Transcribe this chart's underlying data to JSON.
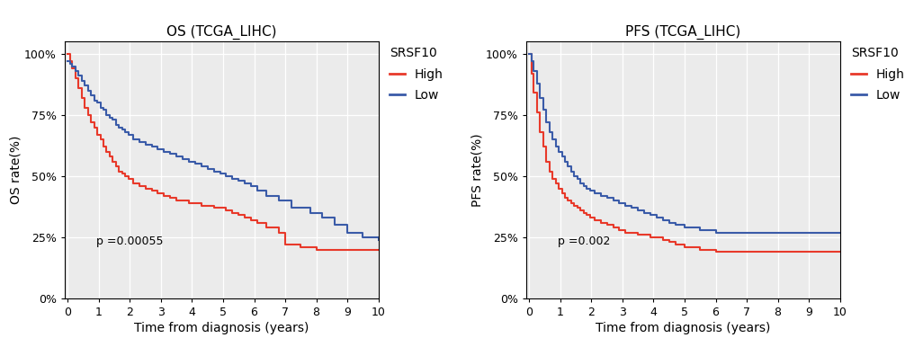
{
  "os_title": "OS (TCGA_LIHC)",
  "pfs_title": "PFS (TCGA_LIHC)",
  "xlabel": "Time from diagnosis (years)",
  "os_ylabel": "OS rate(%)",
  "pfs_ylabel": "PFS rate(%)",
  "legend_title": "SRSF10",
  "legend_high": "High",
  "legend_low": "Low",
  "os_pvalue": "p =0.00055",
  "pfs_pvalue": "p =0.002",
  "high_color": "#E8392A",
  "low_color": "#3A5BA8",
  "plot_bg_color": "#EBEBEB",
  "fig_bg_color": "#FFFFFF",
  "ylim": [
    0,
    1.05
  ],
  "xlim": [
    -0.1,
    10
  ],
  "xticks": [
    0,
    1,
    2,
    3,
    4,
    5,
    6,
    7,
    8,
    9,
    10
  ],
  "yticks": [
    0,
    0.25,
    0.5,
    0.75,
    1.0
  ],
  "ytick_labels": [
    "0%",
    "25%",
    "50%",
    "75%",
    "100%"
  ],
  "os_high_t": [
    0,
    0.08,
    0.15,
    0.25,
    0.35,
    0.45,
    0.55,
    0.65,
    0.75,
    0.85,
    0.95,
    1.05,
    1.15,
    1.25,
    1.35,
    1.45,
    1.55,
    1.65,
    1.75,
    1.85,
    1.95,
    2.1,
    2.3,
    2.5,
    2.7,
    2.9,
    3.1,
    3.3,
    3.5,
    3.7,
    3.9,
    4.1,
    4.3,
    4.5,
    4.7,
    4.9,
    5.1,
    5.3,
    5.5,
    5.7,
    5.9,
    6.1,
    6.4,
    6.8,
    7.0,
    7.5,
    8.0,
    8.5,
    9.0,
    10.0
  ],
  "os_high_s": [
    1.0,
    0.97,
    0.94,
    0.9,
    0.86,
    0.82,
    0.78,
    0.75,
    0.72,
    0.7,
    0.67,
    0.65,
    0.62,
    0.6,
    0.58,
    0.56,
    0.54,
    0.52,
    0.51,
    0.5,
    0.49,
    0.47,
    0.46,
    0.45,
    0.44,
    0.43,
    0.42,
    0.41,
    0.4,
    0.4,
    0.39,
    0.39,
    0.38,
    0.38,
    0.37,
    0.37,
    0.36,
    0.35,
    0.34,
    0.33,
    0.32,
    0.31,
    0.29,
    0.27,
    0.22,
    0.21,
    0.2,
    0.2,
    0.2,
    0.2
  ],
  "os_low_t": [
    0,
    0.08,
    0.15,
    0.25,
    0.35,
    0.45,
    0.55,
    0.65,
    0.75,
    0.85,
    0.95,
    1.05,
    1.15,
    1.25,
    1.35,
    1.45,
    1.55,
    1.65,
    1.75,
    1.85,
    1.95,
    2.1,
    2.3,
    2.5,
    2.7,
    2.9,
    3.1,
    3.3,
    3.5,
    3.7,
    3.9,
    4.1,
    4.3,
    4.5,
    4.7,
    4.9,
    5.1,
    5.3,
    5.5,
    5.7,
    5.9,
    6.1,
    6.4,
    6.8,
    7.2,
    7.8,
    8.2,
    8.6,
    9.0,
    9.5,
    10.0
  ],
  "os_low_s": [
    0.97,
    0.96,
    0.95,
    0.93,
    0.91,
    0.89,
    0.87,
    0.85,
    0.83,
    0.81,
    0.8,
    0.78,
    0.77,
    0.75,
    0.74,
    0.73,
    0.71,
    0.7,
    0.69,
    0.68,
    0.67,
    0.65,
    0.64,
    0.63,
    0.62,
    0.61,
    0.6,
    0.59,
    0.58,
    0.57,
    0.56,
    0.55,
    0.54,
    0.53,
    0.52,
    0.51,
    0.5,
    0.49,
    0.48,
    0.47,
    0.46,
    0.44,
    0.42,
    0.4,
    0.37,
    0.35,
    0.33,
    0.3,
    0.27,
    0.25,
    0.24
  ],
  "pfs_high_t": [
    0,
    0.08,
    0.15,
    0.25,
    0.35,
    0.45,
    0.55,
    0.65,
    0.75,
    0.85,
    0.95,
    1.05,
    1.15,
    1.25,
    1.35,
    1.45,
    1.55,
    1.65,
    1.75,
    1.85,
    1.95,
    2.1,
    2.3,
    2.5,
    2.7,
    2.9,
    3.1,
    3.3,
    3.5,
    3.7,
    3.9,
    4.1,
    4.3,
    4.5,
    4.7,
    5.0,
    5.5,
    6.0,
    7.0,
    8.0,
    9.0,
    10.0
  ],
  "pfs_high_s": [
    1.0,
    0.92,
    0.84,
    0.76,
    0.68,
    0.62,
    0.56,
    0.52,
    0.49,
    0.47,
    0.45,
    0.43,
    0.41,
    0.4,
    0.39,
    0.38,
    0.37,
    0.36,
    0.35,
    0.34,
    0.33,
    0.32,
    0.31,
    0.3,
    0.29,
    0.28,
    0.27,
    0.27,
    0.26,
    0.26,
    0.25,
    0.25,
    0.24,
    0.23,
    0.22,
    0.21,
    0.2,
    0.19,
    0.19,
    0.19,
    0.19,
    0.19
  ],
  "pfs_low_t": [
    0,
    0.08,
    0.15,
    0.25,
    0.35,
    0.45,
    0.55,
    0.65,
    0.75,
    0.85,
    0.95,
    1.05,
    1.15,
    1.25,
    1.35,
    1.45,
    1.55,
    1.65,
    1.75,
    1.85,
    1.95,
    2.1,
    2.3,
    2.5,
    2.7,
    2.9,
    3.1,
    3.3,
    3.5,
    3.7,
    3.9,
    4.1,
    4.3,
    4.5,
    4.7,
    5.0,
    5.5,
    6.0,
    6.5,
    7.0,
    8.0,
    9.0,
    10.0
  ],
  "pfs_low_s": [
    1.0,
    0.97,
    0.93,
    0.88,
    0.82,
    0.77,
    0.72,
    0.68,
    0.65,
    0.62,
    0.6,
    0.58,
    0.56,
    0.54,
    0.52,
    0.5,
    0.49,
    0.47,
    0.46,
    0.45,
    0.44,
    0.43,
    0.42,
    0.41,
    0.4,
    0.39,
    0.38,
    0.37,
    0.36,
    0.35,
    0.34,
    0.33,
    0.32,
    0.31,
    0.3,
    0.29,
    0.28,
    0.27,
    0.27,
    0.27,
    0.27,
    0.27,
    0.27
  ]
}
